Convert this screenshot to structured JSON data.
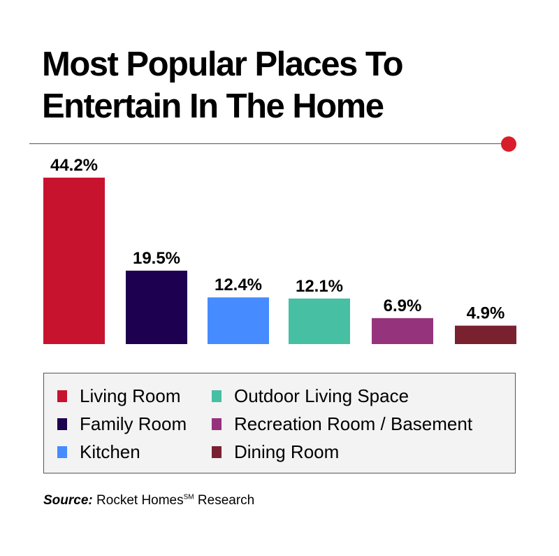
{
  "title_lines": [
    "Most Popular Places To",
    "Entertain In The Home"
  ],
  "chart_data": {
    "type": "bar",
    "title": "Most Popular Places To Entertain In The Home",
    "categories": [
      "Living Room",
      "Family Room",
      "Kitchen",
      "Outdoor Living Space",
      "Recreation Room / Basement",
      "Dining Room"
    ],
    "values": [
      44.2,
      19.5,
      12.4,
      12.1,
      6.9,
      4.9
    ],
    "data_labels": [
      "44.2%",
      "19.5%",
      "12.4%",
      "12.1%",
      "6.9%",
      "4.9%"
    ],
    "colors": [
      "#c8132e",
      "#1e0050",
      "#468bff",
      "#47bfa3",
      "#96337d",
      "#7a212f"
    ],
    "xlabel": "",
    "ylabel": "",
    "ylim": [
      0,
      44.2
    ],
    "grid": false,
    "legend_position": "bottom"
  },
  "legend": {
    "items": [
      "Living Room",
      "Family Room",
      "Kitchen",
      "Outdoor Living Space",
      "Recreation Room / Basement",
      "Dining Room"
    ]
  },
  "source": {
    "label": "Source:",
    "text": " Rocket Homes",
    "sup": "SM",
    "suffix": " Research"
  },
  "accent_color": "#d81e2a"
}
